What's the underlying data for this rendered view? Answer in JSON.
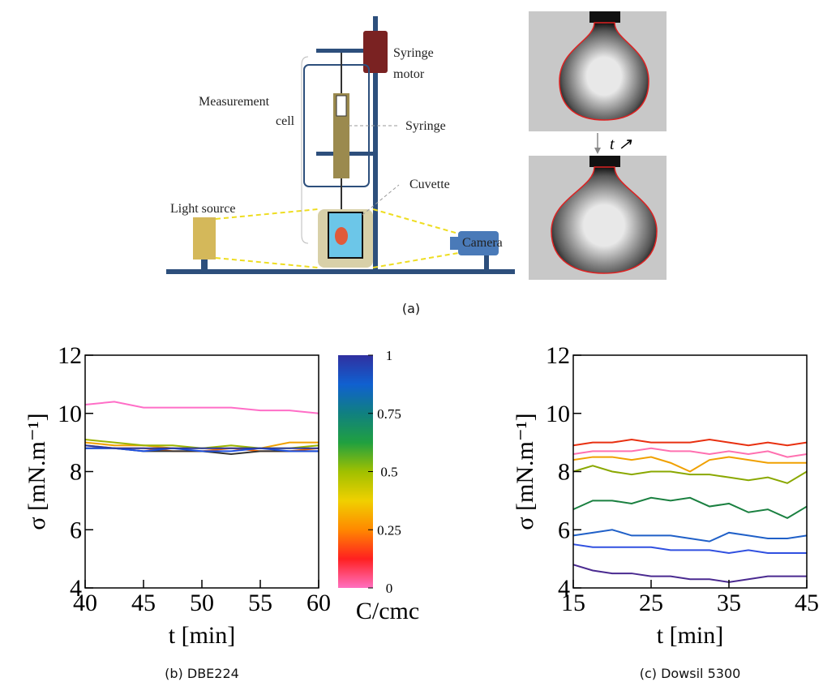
{
  "diagram": {
    "syringe_motor": [
      "Syringe",
      "motor"
    ],
    "measurement_cell": [
      "Measurement",
      "cell"
    ],
    "syringe": "Syringe",
    "cuvette": "Cuvette",
    "light_source": "Light source",
    "camera": "Camera",
    "time_arrow": "t ↗",
    "caption": "(a)"
  },
  "chart_data": [
    {
      "type": "line",
      "caption": "(b) DBE224",
      "xlabel": "t [min]",
      "ylabel": "σ [mN.m⁻¹]",
      "xlim": [
        40,
        60
      ],
      "xticks": [
        40,
        45,
        50,
        55,
        60
      ],
      "ylim": [
        4,
        12
      ],
      "yticks": [
        4,
        6,
        8,
        10,
        12
      ],
      "x": [
        40,
        42.5,
        45,
        47.5,
        50,
        52.5,
        55,
        57.5,
        60
      ],
      "series": [
        {
          "color": "#ff6ec7",
          "values": [
            10.3,
            10.4,
            10.2,
            10.2,
            10.2,
            10.2,
            10.1,
            10.1,
            10.0
          ]
        },
        {
          "color": "#f0a000",
          "values": [
            9.0,
            8.9,
            8.9,
            8.8,
            8.8,
            8.8,
            8.8,
            9.0,
            9.0
          ]
        },
        {
          "color": "#9bb400",
          "values": [
            9.1,
            9.0,
            8.9,
            8.9,
            8.8,
            8.9,
            8.8,
            8.8,
            8.9
          ]
        },
        {
          "color": "#ff6a00",
          "values": [
            8.9,
            8.8,
            8.8,
            8.7,
            8.7,
            8.8,
            8.7,
            8.7,
            8.8
          ]
        },
        {
          "color": "#333333",
          "values": [
            8.8,
            8.8,
            8.7,
            8.7,
            8.7,
            8.6,
            8.7,
            8.7,
            8.7
          ]
        },
        {
          "color": "#1e50e0",
          "values": [
            8.8,
            8.8,
            8.7,
            8.8,
            8.7,
            8.7,
            8.8,
            8.7,
            8.7
          ]
        },
        {
          "color": "#2a3aa0",
          "values": [
            8.9,
            8.8,
            8.8,
            8.8,
            8.8,
            8.8,
            8.8,
            8.8,
            8.8
          ]
        }
      ],
      "colorbar": {
        "label": "C/cmc",
        "lim": [
          0,
          1
        ],
        "ticks": [
          0,
          0.25,
          0.5,
          0.75,
          1
        ],
        "colors": [
          "#ff70c0",
          "#ff2020",
          "#ff8800",
          "#f0d000",
          "#a0c000",
          "#20a040",
          "#108080",
          "#1060d0",
          "#3030a0"
        ]
      }
    },
    {
      "type": "line",
      "caption": "(c) Dowsil 5300",
      "xlabel": "t [min]",
      "ylabel": "σ [mN.m⁻¹]",
      "xlim": [
        15,
        45
      ],
      "xticks": [
        15,
        25,
        35,
        45
      ],
      "ylim": [
        4,
        12
      ],
      "yticks": [
        4,
        6,
        8,
        10,
        12
      ],
      "x": [
        15,
        17.5,
        20,
        22.5,
        25,
        27.5,
        30,
        32.5,
        35,
        37.5,
        40,
        42.5,
        45
      ],
      "series": [
        {
          "color": "#e83010",
          "values": [
            8.9,
            9.0,
            9.0,
            9.1,
            9.0,
            9.0,
            9.0,
            9.1,
            9.0,
            8.9,
            9.0,
            8.9,
            9.0
          ]
        },
        {
          "color": "#ff70b0",
          "values": [
            8.6,
            8.7,
            8.7,
            8.7,
            8.8,
            8.7,
            8.7,
            8.6,
            8.7,
            8.6,
            8.7,
            8.5,
            8.6
          ]
        },
        {
          "color": "#f0a000",
          "values": [
            8.4,
            8.5,
            8.5,
            8.4,
            8.5,
            8.3,
            8.0,
            8.4,
            8.5,
            8.4,
            8.3,
            8.3,
            8.3
          ]
        },
        {
          "color": "#8aa800",
          "values": [
            8.0,
            8.2,
            8.0,
            7.9,
            8.0,
            8.0,
            7.9,
            7.9,
            7.8,
            7.7,
            7.8,
            7.6,
            8.0
          ]
        },
        {
          "color": "#1a8040",
          "values": [
            6.7,
            7.0,
            7.0,
            6.9,
            7.1,
            7.0,
            7.1,
            6.8,
            6.9,
            6.6,
            6.7,
            6.4,
            6.8
          ]
        },
        {
          "color": "#2060c8",
          "values": [
            5.8,
            5.9,
            6.0,
            5.8,
            5.8,
            5.8,
            5.7,
            5.6,
            5.9,
            5.8,
            5.7,
            5.7,
            5.8
          ]
        },
        {
          "color": "#3050e0",
          "values": [
            5.5,
            5.4,
            5.4,
            5.4,
            5.4,
            5.3,
            5.3,
            5.3,
            5.2,
            5.3,
            5.2,
            5.2,
            5.2
          ]
        },
        {
          "color": "#4a2a90",
          "values": [
            4.8,
            4.6,
            4.5,
            4.5,
            4.4,
            4.4,
            4.3,
            4.3,
            4.2,
            4.3,
            4.4,
            4.4,
            4.4
          ]
        }
      ]
    }
  ]
}
